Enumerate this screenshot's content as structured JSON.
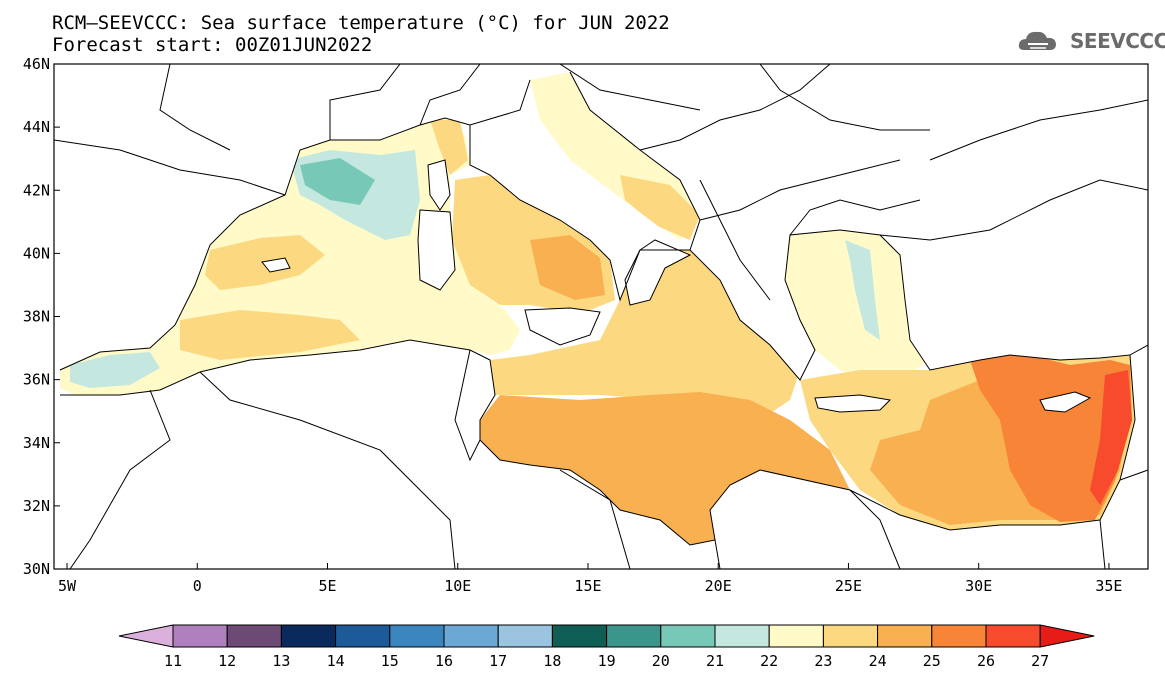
{
  "title_line1": "RCM–SEEVCCC: Sea surface temperature (°C) for JUN 2022",
  "title_line2": "Forecast start: 00Z01JUN2022",
  "logo": {
    "text": "SEEVCCC",
    "icon": "cloud-logo-icon",
    "color": "#6b6b6b"
  },
  "map": {
    "lon_range": [
      -5.5,
      36.5
    ],
    "lat_range": [
      30,
      46
    ],
    "lon_ticks": [
      {
        "value": -5,
        "label": "5W"
      },
      {
        "value": 0,
        "label": "0"
      },
      {
        "value": 5,
        "label": "5E"
      },
      {
        "value": 10,
        "label": "10E"
      },
      {
        "value": 15,
        "label": "15E"
      },
      {
        "value": 20,
        "label": "20E"
      },
      {
        "value": 25,
        "label": "25E"
      },
      {
        "value": 30,
        "label": "30E"
      },
      {
        "value": 35,
        "label": "35E"
      }
    ],
    "lat_ticks": [
      {
        "value": 30,
        "label": "30N"
      },
      {
        "value": 32,
        "label": "32N"
      },
      {
        "value": 34,
        "label": "34N"
      },
      {
        "value": 36,
        "label": "36N"
      },
      {
        "value": 38,
        "label": "38N"
      },
      {
        "value": 40,
        "label": "40N"
      },
      {
        "value": 42,
        "label": "42N"
      },
      {
        "value": 44,
        "label": "44N"
      },
      {
        "value": 46,
        "label": "46N"
      }
    ]
  },
  "colorbar": {
    "labels": [
      "11",
      "12",
      "13",
      "14",
      "15",
      "16",
      "17",
      "18",
      "19",
      "20",
      "21",
      "22",
      "23",
      "24",
      "25",
      "26",
      "27"
    ],
    "colors": [
      "#dcb0dc",
      "#b07fbd",
      "#6b4a75",
      "#0a2a5e",
      "#1c5a9a",
      "#3c86c0",
      "#6ba8d4",
      "#9ac4e0",
      "#0f5e55",
      "#3a968a",
      "#78c8b8",
      "#c4e8e0",
      "#fffac8",
      "#fcd880",
      "#f8b050",
      "#f88438",
      "#f84a2c",
      "#e81c16"
    ]
  }
}
